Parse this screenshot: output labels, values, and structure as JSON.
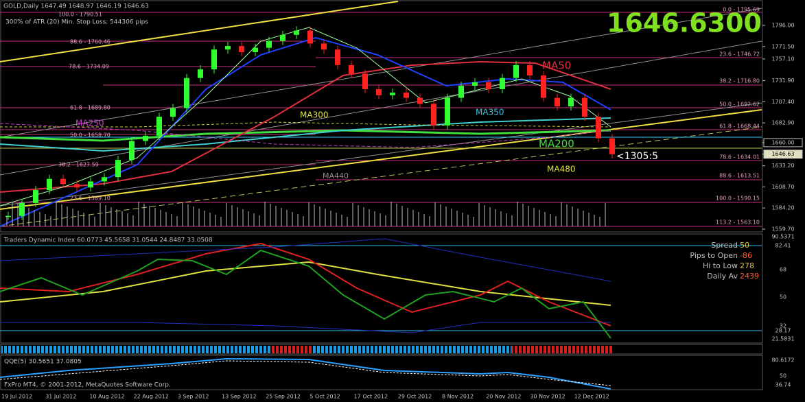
{
  "header": {
    "symbol": "GOLD,Daily  1647.49 1648.97 1646.19 1646.63",
    "atr": "300% of ATR (20)    Min. Stop Loss:    544306 pips",
    "big_price": "1646.6300"
  },
  "fib_left": [
    "100.0 - 1790.51",
    "88.6 - 1760.46",
    "78.6 - 1734.09",
    "61.8 - 1689.80",
    "50.0 - 1658.70",
    "38.2 - 1627.59",
    "23.6 - 1589.10"
  ],
  "fib_right": [
    "0.0 - 1795.69",
    "23.6 - 1746.72",
    "38.2 - 1716.80",
    "50.0 - 1692.62",
    "61.8 - 1668.44",
    "78.6 - 1634.01",
    "88.6 - 1613.51",
    "100.0 - 1590.15",
    "113.2 - 1563.10"
  ],
  "ma_labels": [
    "MA50",
    "MA250",
    "MA300",
    "MA350",
    "MA200",
    "MA480",
    "MA440"
  ],
  "countdown": "<1305:5",
  "price_ticks": [
    {
      "value": 1796,
      "label": "1796.00"
    },
    {
      "value": 1771.5,
      "label": "1771.50"
    },
    {
      "value": 1757.1,
      "label": "1757.10"
    },
    {
      "value": 1731.9,
      "label": "1731.90"
    },
    {
      "value": 1707.4,
      "label": "1707.40"
    },
    {
      "value": 1682.9,
      "label": "1682.90"
    },
    {
      "value": 1660,
      "label": "1660.00"
    },
    {
      "value": 1646.63,
      "label": "1646.63"
    },
    {
      "value": 1633.2,
      "label": "1633.20"
    },
    {
      "value": 1608.7,
      "label": "1608.70"
    },
    {
      "value": 1584.2,
      "label": "1584.20"
    },
    {
      "value": 1559.7,
      "label": "1559.70"
    }
  ],
  "closes": [
    1575,
    1590,
    1605,
    1618,
    1612,
    1608,
    1615,
    1620,
    1640,
    1662,
    1668,
    1690,
    1700,
    1735,
    1745,
    1768,
    1772,
    1765,
    1770,
    1778,
    1785,
    1790,
    1775,
    1768,
    1750,
    1740,
    1722,
    1715,
    1718,
    1712,
    1705,
    1680,
    1712,
    1726,
    1730,
    1722,
    1735,
    1750,
    1738,
    1712,
    1702,
    1712,
    1690,
    1665,
    1646.63
  ],
  "tdi": {
    "header": "Traders Dynamic Index 60.0773 45.5658 31.0544 24.8487 33.0508",
    "ticks": [
      "90.5371",
      "82.41",
      "68",
      "50",
      "32",
      "28.17",
      "21.5831"
    ]
  },
  "info": [
    {
      "label": "Spread",
      "value": "50"
    },
    {
      "label": "Pips to Open",
      "value": "-86"
    },
    {
      "label": "Hi to Low",
      "value": "278"
    },
    {
      "label": "Daily Av",
      "value": "2439"
    }
  ],
  "qqe": {
    "header": "QQE(5) 30.5651 37.0805",
    "footer": "FxPro MT4, © 2001-2012, MetaQuotes Software Corp.",
    "ticks": [
      "80.6172",
      "50",
      "36.74"
    ]
  },
  "dates": [
    "19 Jul 2012",
    "31 Jul 2012",
    "10 Aug 2012",
    "22 Aug 2012",
    "3 Sep 2012",
    "13 Sep 2012",
    "25 Sep 2012",
    "5 Oct 2012",
    "17 Oct 2012",
    "29 Oct 2012",
    "8 Nov 2012",
    "20 Nov 2012",
    "30 Nov 2012",
    "12 Dec 2012"
  ]
}
